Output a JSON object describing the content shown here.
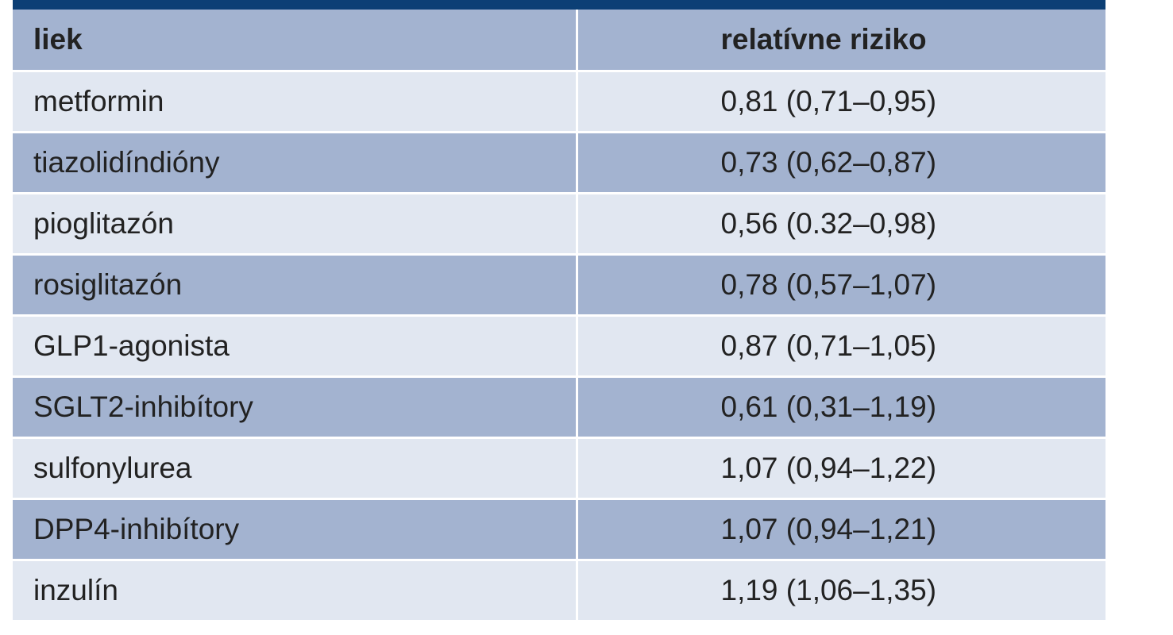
{
  "table": {
    "headers": [
      "liek",
      "relatívne riziko"
    ],
    "rows": [
      [
        "metformin",
        "0,81 (0,71–0,95)"
      ],
      [
        "tiazolidíndióny",
        "0,73 (0,62–0,87)"
      ],
      [
        "pioglitazón",
        "0,56 (0.32–0,98)"
      ],
      [
        "rosiglitazón",
        "0,78 (0,57–1,07)"
      ],
      [
        "GLP1-agonista",
        "0,87 (0,71–1,05)"
      ],
      [
        "SGLT2-inhibítory",
        "0,61 (0,31–1,19)"
      ],
      [
        "sulfonylurea",
        "1,07 (0,94–1,22)"
      ],
      [
        "DPP4-inhibítory",
        "1,07 (0,94–1,21)"
      ],
      [
        "inzulín",
        "1,19 (1,06–1,35)"
      ]
    ]
  },
  "colors": {
    "top_rule": "#0c3f75",
    "header_bg": "#a3b3d0",
    "row_light": "#e1e7f1",
    "row_dark": "#a3b3d0"
  }
}
